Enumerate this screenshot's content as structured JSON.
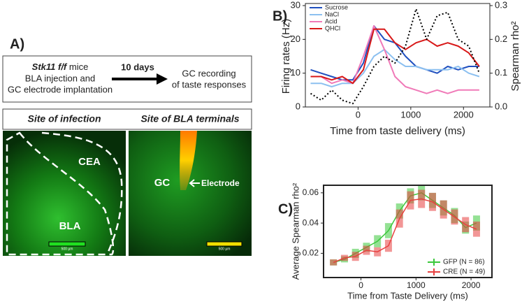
{
  "panel_a": {
    "label": "A)",
    "protocol": {
      "strain": "Stk11 f/f",
      "strain_suffix": "mice",
      "line2": "BLA injection and",
      "line3": "GC electrode implantation",
      "interval": "10 days",
      "result_line1": "GC recording",
      "result_line2": "of taste responses"
    },
    "headers": [
      "Site of infection",
      "Site of BLA terminals"
    ],
    "image_left": {
      "labels": [
        "CEA",
        "BLA"
      ],
      "scale_bar": "500 µm"
    },
    "image_right": {
      "labels": [
        "GC",
        "Electrode"
      ],
      "scale_bar": "500 µm"
    }
  },
  "chart_data": [
    {
      "type": "line",
      "panel_label": "B)",
      "xlabel": "Time from taste delivery (ms)",
      "ylabel": "Firing rates (Hz)",
      "y2label": "Spearman rho²",
      "x": [
        -900,
        -700,
        -500,
        -300,
        -100,
        100,
        300,
        500,
        700,
        900,
        1100,
        1300,
        1500,
        1700,
        1900,
        2100,
        2300
      ],
      "xlim": [
        -1000,
        2500
      ],
      "xticks": [
        0,
        1000,
        2000
      ],
      "ylim": [
        0,
        30
      ],
      "yticks": [
        0,
        10,
        20,
        30
      ],
      "y2lim": [
        0,
        0.3
      ],
      "y2ticks": [
        {
          "value": 0,
          "label": "0.0"
        },
        0.1,
        0.2,
        0.3
      ],
      "legend": "upper left",
      "series": [
        {
          "name": "Sucrose",
          "color": "#1f4fbf",
          "values": [
            11,
            10,
            9,
            8,
            8,
            13,
            24,
            20,
            19,
            15,
            12,
            11,
            10,
            12,
            11,
            12,
            12
          ]
        },
        {
          "name": "NaCl",
          "color": "#8cc0f0",
          "values": [
            7,
            7,
            6,
            7,
            7,
            10,
            15,
            17,
            14,
            12,
            12,
            11,
            11,
            11,
            12,
            10,
            9
          ]
        },
        {
          "name": "Acid",
          "color": "#f07ab8",
          "values": [
            9,
            9,
            7,
            8,
            7,
            15,
            24,
            17,
            9,
            6,
            5,
            4,
            5,
            4,
            5,
            5,
            5
          ]
        },
        {
          "name": "QHCl",
          "color": "#d81818",
          "values": [
            9,
            9,
            8,
            9,
            7,
            11,
            23,
            23,
            19,
            17,
            19,
            20,
            18,
            19,
            18,
            16,
            12
          ]
        },
        {
          "color": "#000000",
          "axis": "y2",
          "dashed": true,
          "values": [
            0.04,
            0.02,
            0.05,
            0.02,
            0.01,
            0.06,
            0.12,
            0.15,
            0.13,
            0.18,
            0.29,
            0.2,
            0.27,
            0.28,
            0.2,
            0.18,
            0.1
          ]
        }
      ]
    },
    {
      "type": "line",
      "panel_label": "C)",
      "xlabel": "Time from Taste Delivery (ms)",
      "ylabel": "Average Spearman rho²",
      "x": [
        -500,
        -300,
        -100,
        100,
        300,
        500,
        700,
        900,
        1100,
        1300,
        1500,
        1700,
        1900,
        2100
      ],
      "xlim": [
        -680,
        2380
      ],
      "xticks": [
        0,
        1000,
        2000
      ],
      "ylim": [
        0.004,
        0.065
      ],
      "yticks": [
        0.02,
        0.04,
        0.06
      ],
      "legend": "lower right",
      "series": [
        {
          "name": "GFP (N = 86)",
          "color": "#3cc83c",
          "values": [
            0.014,
            0.016,
            0.02,
            0.024,
            0.028,
            0.035,
            0.048,
            0.058,
            0.06,
            0.055,
            0.05,
            0.045,
            0.037,
            0.04
          ],
          "errors": [
            0.002,
            0.002,
            0.003,
            0.003,
            0.004,
            0.005,
            0.005,
            0.005,
            0.005,
            0.005,
            0.005,
            0.005,
            0.004,
            0.005
          ]
        },
        {
          "name": "CRE (N = 49)",
          "color": "#e84040",
          "values": [
            0.014,
            0.017,
            0.018,
            0.022,
            0.021,
            0.025,
            0.043,
            0.055,
            0.056,
            0.054,
            0.049,
            0.044,
            0.039,
            0.036
          ],
          "errors": [
            0.002,
            0.002,
            0.003,
            0.003,
            0.003,
            0.004,
            0.006,
            0.006,
            0.006,
            0.006,
            0.006,
            0.005,
            0.005,
            0.005
          ]
        }
      ]
    }
  ]
}
